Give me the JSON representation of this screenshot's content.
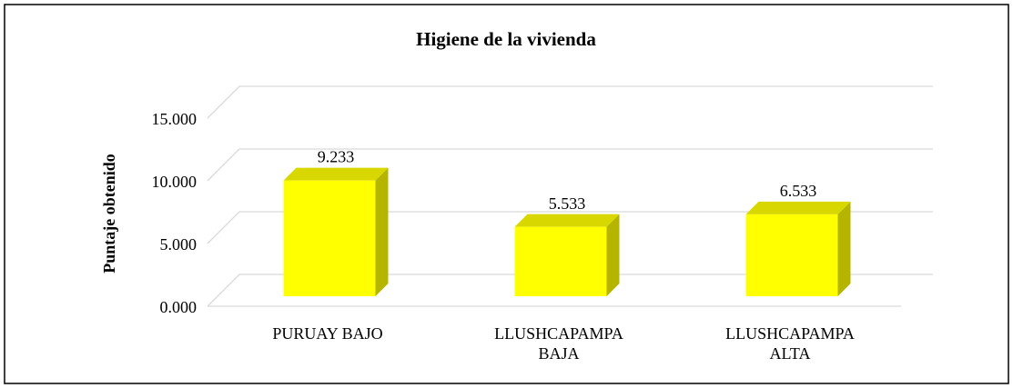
{
  "chart_data": {
    "type": "bar3d",
    "title": "Higiene de la vivienda",
    "y_label": "Puntaje obtenido",
    "categories": [
      "PURUAY BAJO",
      "LLUSHCAPAMPA BAJA",
      "LLUSHCAPAMPA ALTA"
    ],
    "values": [
      9.233,
      5.533,
      6.533
    ],
    "color": "#ffff00",
    "ylim": [
      0,
      15
    ],
    "yticks": [
      {
        "value": 0,
        "label": "0.000"
      },
      {
        "value": 5,
        "label": "5.000"
      },
      {
        "value": 10,
        "label": "10.000"
      },
      {
        "value": 15,
        "label": "15.000"
      }
    ],
    "grid": true
  }
}
